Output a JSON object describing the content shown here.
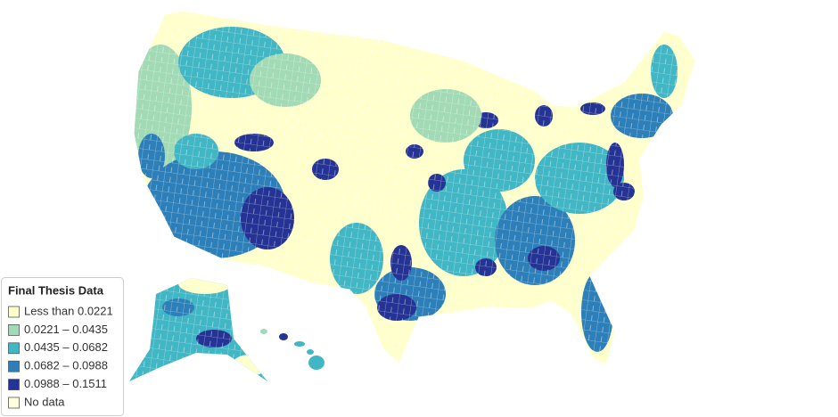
{
  "legend": {
    "title": "Final Thesis Data",
    "items": [
      {
        "label": "Less than 0.0221",
        "color": "#ffffcc"
      },
      {
        "label": "0.0221 – 0.0435",
        "color": "#a1dab4"
      },
      {
        "label": "0.0435 – 0.0682",
        "color": "#41b6c4"
      },
      {
        "label": "0.0682 – 0.0988",
        "color": "#2c7fb8"
      },
      {
        "label": "0.0988 – 0.1511",
        "color": "#253494"
      },
      {
        "label": "No data",
        "color": "#ffffdd"
      }
    ]
  }
}
